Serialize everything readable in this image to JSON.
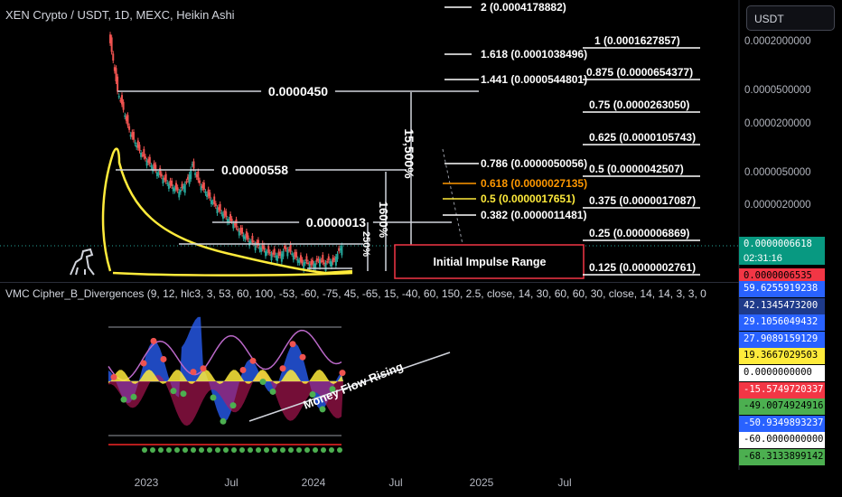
{
  "header": {
    "symbol": "XEN Crypto / USDT, 1D, MEXC, Heikin Ashi",
    "indicator": "VMC Cipher_B_Divergences (9, 12, hlc3, 3, 53, 60, 100, -53, -60, -75, 45, -65, 15, -40, 60, 150, 2.5, close, 14, 30, 60, 60, 30, close, 14, 14, 3, 3, 0"
  },
  "currency_button": "USDT",
  "price_axis": [
    "0.0002000000",
    "0.0000500000",
    "0.0000200000",
    "0.0000050000",
    "0.0000020000"
  ],
  "price_badges": [
    {
      "text": "0.0000006618",
      "bg": "#089981",
      "fg": "#ffffff"
    },
    {
      "text": "0.0000006535",
      "bg": "#f23645",
      "fg": "#000000"
    }
  ],
  "countdown": "02:31:16",
  "indicator_badges": [
    {
      "text": "59.6255919238",
      "bg": "#2962ff",
      "fg": "#ffffff"
    },
    {
      "text": "42.1345473200",
      "bg": "#1e3a8a",
      "fg": "#ffffff"
    },
    {
      "text": "29.1056049432",
      "bg": "#2962ff",
      "fg": "#ffffff"
    },
    {
      "text": "27.9089159129",
      "bg": "#2962ff",
      "fg": "#ffffff"
    },
    {
      "text": "19.3667029503",
      "bg": "#ffeb3b",
      "fg": "#000000"
    },
    {
      "text": "0.0000000000",
      "bg": "#ffffff",
      "fg": "#000000"
    },
    {
      "text": "-15.5749720337",
      "bg": "#f23645",
      "fg": "#ffffff"
    },
    {
      "text": "-49.0074924916",
      "bg": "#4caf50",
      "fg": "#000000"
    },
    {
      "text": "-50.9349893237",
      "bg": "#2962ff",
      "fg": "#ffffff"
    },
    {
      "text": "-60.0000000000",
      "bg": "#ffffff",
      "fg": "#000000"
    },
    {
      "text": "-68.3133899142",
      "bg": "#4caf50",
      "fg": "#000000"
    }
  ],
  "x_axis": [
    "2023",
    "Jul",
    "2024",
    "Jul",
    "2025",
    "Jul"
  ],
  "annotations": {
    "levels": [
      "0.0000450",
      "0.00000558",
      "0.0000013"
    ],
    "pct_big": "15,500%",
    "pct_small": "1600%",
    "pct_mini": "250%",
    "impulse_box": "Initial Impulse Range",
    "money_flow": "Money Flow Rising"
  },
  "fib_left": [
    {
      "text": "2 (0.0004178882)",
      "color": "#ffffff"
    },
    {
      "text": "1.618 (0.0001038496)",
      "color": "#ffffff"
    },
    {
      "text": "1.441 (0.0000544801)",
      "color": "#ffffff"
    },
    {
      "text": "0.786 (0.0000050056)",
      "color": "#ffffff"
    },
    {
      "text": "0.618 (0.0000027135)",
      "color": "#ff9800"
    },
    {
      "text": "0.5 (0.0000017651)",
      "color": "#ffeb3b"
    },
    {
      "text": "0.382 (0.0000011481)",
      "color": "#ffffff"
    }
  ],
  "fib_right": [
    {
      "text": "1 (0.0001627857)",
      "color": "#ffffff"
    },
    {
      "text": "0.875 (0.0000654377)",
      "color": "#ffffff"
    },
    {
      "text": "0.75 (0.0000263050)",
      "color": "#ffffff"
    },
    {
      "text": "0.625 (0.0000105743)",
      "color": "#ffffff"
    },
    {
      "text": "0.5 (0.0000042507)",
      "color": "#ffffff"
    },
    {
      "text": "0.375 (0.0000017087)",
      "color": "#ffffff"
    },
    {
      "text": "0.25 (0.0000006869)",
      "color": "#ffffff"
    },
    {
      "text": "0.125 (0.0000002761)",
      "color": "#ffffff"
    }
  ],
  "chart_data": {
    "type": "line",
    "log_scale": true,
    "x_ticks": [
      "2023",
      "Jul",
      "2024",
      "Jul",
      "2025",
      "Jul"
    ],
    "series": [
      {
        "values": [
          0.00025,
          0.00012,
          5e-05,
          3.5e-05,
          2.2e-05,
          1.5e-05,
          1.2e-05,
          9.5e-06,
          8e-06,
          6.8e-06,
          6e-06,
          5.2e-06,
          4.6e-06,
          4e-06,
          3.6e-06,
          3.3e-06,
          3e-06,
          3.5e-06,
          4.2e-06,
          6.5e-06,
          4.5e-06,
          3.5e-06,
          3e-06,
          2.5e-06,
          2.1e-06,
          1.8e-06,
          1.6e-06,
          1.4e-06,
          1.3e-06,
          1.1e-06,
          9.5e-07,
          8.5e-07,
          7.5e-07,
          7e-07,
          6.5e-07,
          6e-07,
          5.5e-07,
          5.2e-07,
          5e-07,
          4.9e-07,
          6e-07,
          5.8e-07,
          5e-07,
          4.5e-07,
          4e-07,
          4.2e-07,
          3.8e-07,
          4e-07,
          4.5e-07,
          3.9e-07,
          4.3e-07,
          4.1e-07,
          5.2e-07,
          6.6e-07
        ]
      }
    ],
    "current_price": 6.618e-07,
    "ylim_axis_labels": [
      0.0002,
      5e-05,
      2e-05,
      5e-06,
      2e-06
    ],
    "oscillator_levels": [
      59.6255919238,
      42.13454732,
      29.1056049432,
      27.9089159129,
      19.3667029503,
      0,
      -15.5749720337,
      -49.0074924916,
      -50.9349893237,
      -60,
      -68.3133899142
    ]
  }
}
